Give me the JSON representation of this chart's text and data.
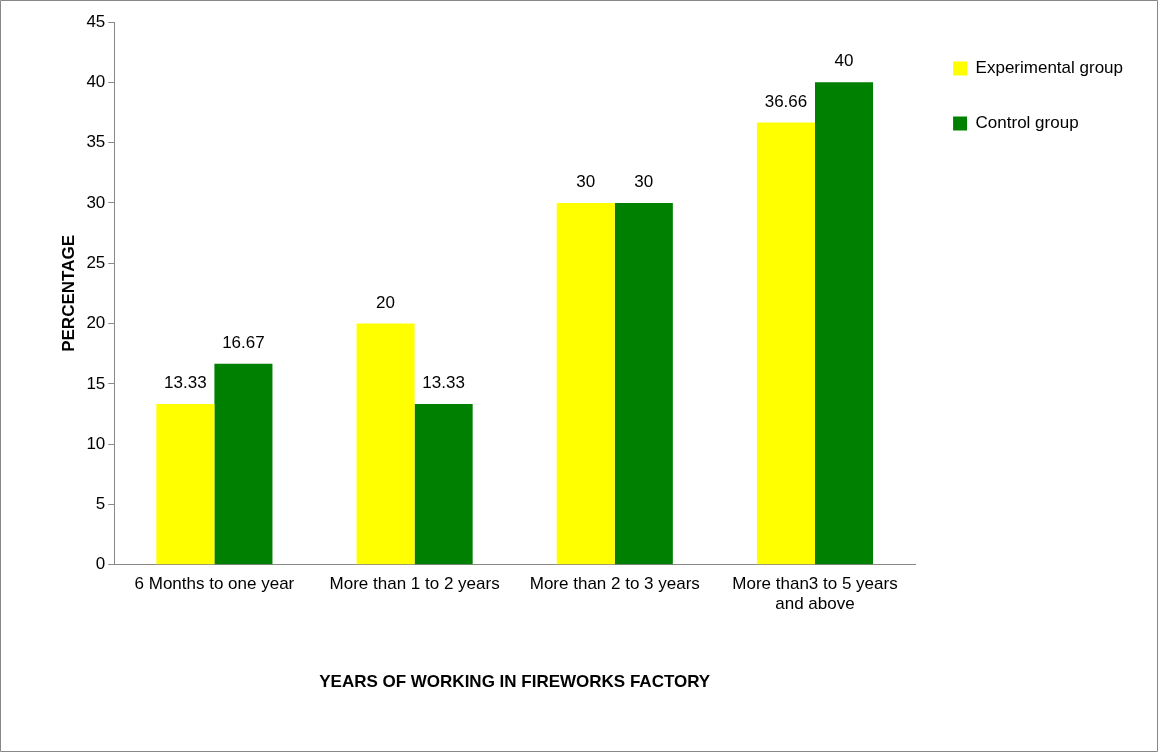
{
  "chart_data": {
    "type": "bar",
    "xlabel": "YEARS OF WORKING IN FIREWORKS FACTORY",
    "ylabel": "PERCENTAGE",
    "categories": [
      "6 Months to one year",
      "More than 1 to 2 years",
      "More than 2 to 3 years",
      "More than3 to 5 years and above"
    ],
    "series": [
      {
        "name": "Experimental group",
        "color": "#ffff00",
        "values": [
          13.33,
          20,
          30,
          36.66
        ]
      },
      {
        "name": "Control group",
        "color": "#008000",
        "values": [
          16.67,
          13.33,
          30,
          40
        ]
      }
    ],
    "ylim": [
      0,
      45
    ],
    "yticks": [
      0,
      5,
      10,
      15,
      20,
      25,
      30,
      35,
      40,
      45
    ],
    "grid": false,
    "legend": "top right",
    "data_labels": true
  }
}
